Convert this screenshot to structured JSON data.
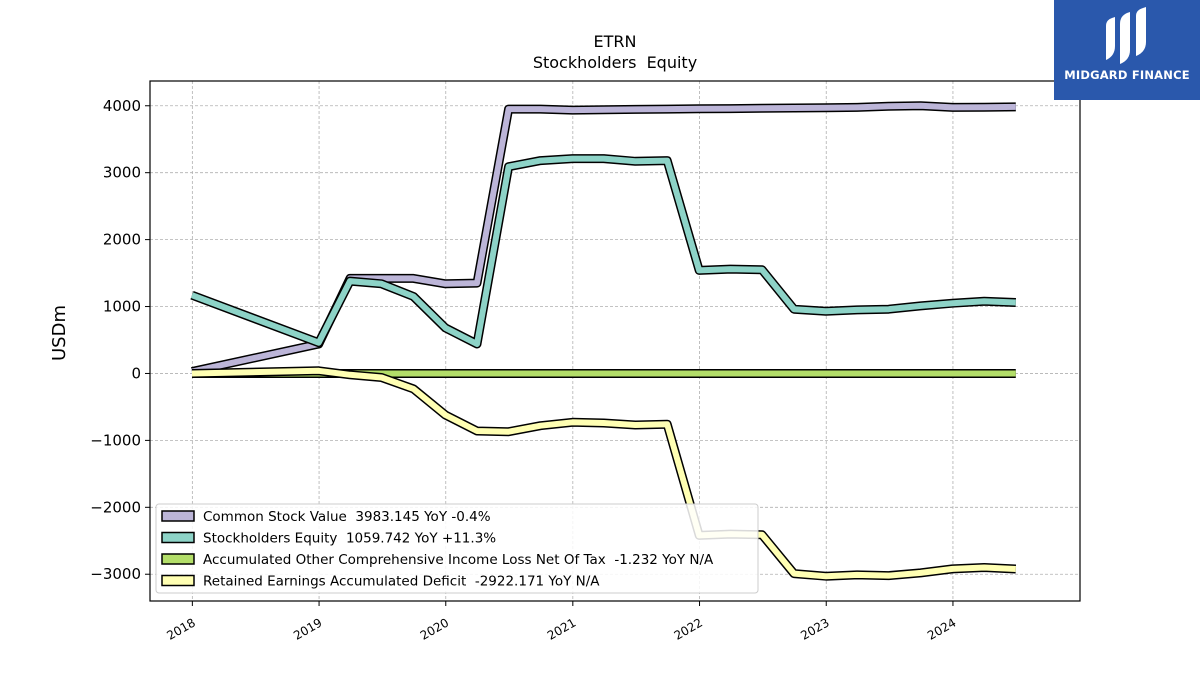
{
  "chart_data": {
    "type": "line",
    "title": "ETRN",
    "subtitle": "Stockholders  Equity",
    "ylabel": "USDm",
    "xlabel": "",
    "x_ticks": [
      "2018",
      "2019",
      "2020",
      "2021",
      "2022",
      "2023",
      "2024"
    ],
    "y_ticks": [
      4000,
      3000,
      2000,
      1000,
      0,
      -1000,
      -2000,
      -3000
    ],
    "xlim": [
      "2017-09",
      "2025-01"
    ],
    "ylim": [
      -3400,
      4370
    ],
    "grid": true,
    "legend_position": "lower-left",
    "x": [
      "2017-12-31",
      "2018-12-31",
      "2019-03-31",
      "2019-06-30",
      "2019-09-30",
      "2019-12-31",
      "2020-03-31",
      "2020-06-30",
      "2020-09-30",
      "2020-12-31",
      "2021-03-31",
      "2021-06-30",
      "2021-09-30",
      "2021-12-31",
      "2022-03-31",
      "2022-06-30",
      "2022-09-30",
      "2022-12-31",
      "2023-03-31",
      "2023-06-30",
      "2023-09-30",
      "2023-12-31",
      "2024-03-31",
      "2024-06-30"
    ],
    "series": [
      {
        "name": "Common Stock Value  3983.145 YoY -0.4%",
        "color": "#bcb5d8",
        "values": [
          30,
          440,
          1420,
          1420,
          1420,
          1340,
          1350,
          3950,
          3950,
          3935,
          3940,
          3945,
          3950,
          3955,
          3958,
          3962,
          3966,
          3970,
          3975,
          3992,
          4000,
          3975,
          3978,
          3983
        ]
      },
      {
        "name": "Stockholders Equity  1059.742 YoY +11.3%",
        "color": "#8dd3c7",
        "values": [
          1170,
          460,
          1380,
          1340,
          1150,
          680,
          440,
          3090,
          3180,
          3210,
          3210,
          3170,
          3180,
          1540,
          1560,
          1550,
          960,
          930,
          950,
          960,
          1010,
          1050,
          1080,
          1060
        ]
      },
      {
        "name": "Accumulated Other Comprehensive Income Loss Net Of Tax  -1.232 YoY N/A",
        "color": "#b3de69",
        "values": [
          -1,
          -1,
          -1,
          -1,
          -1,
          -1,
          -1,
          -1,
          -1,
          -1,
          -1,
          -1,
          -1,
          -1,
          -1,
          -1,
          -1,
          -1,
          -1,
          -1,
          -1,
          -1,
          -1,
          -1.232
        ]
      },
      {
        "name": "Retained Earnings Accumulated Deficit  -2922.171 YoY N/A",
        "color": "#ffffb3",
        "values": [
          0,
          40,
          -20,
          -60,
          -230,
          -620,
          -860,
          -870,
          -780,
          -730,
          -740,
          -770,
          -760,
          -2420,
          -2400,
          -2410,
          -2990,
          -3030,
          -3010,
          -3020,
          -2980,
          -2920,
          -2900,
          -2922
        ]
      }
    ]
  },
  "logo": {
    "text": "MIDGARD FINANCE"
  }
}
